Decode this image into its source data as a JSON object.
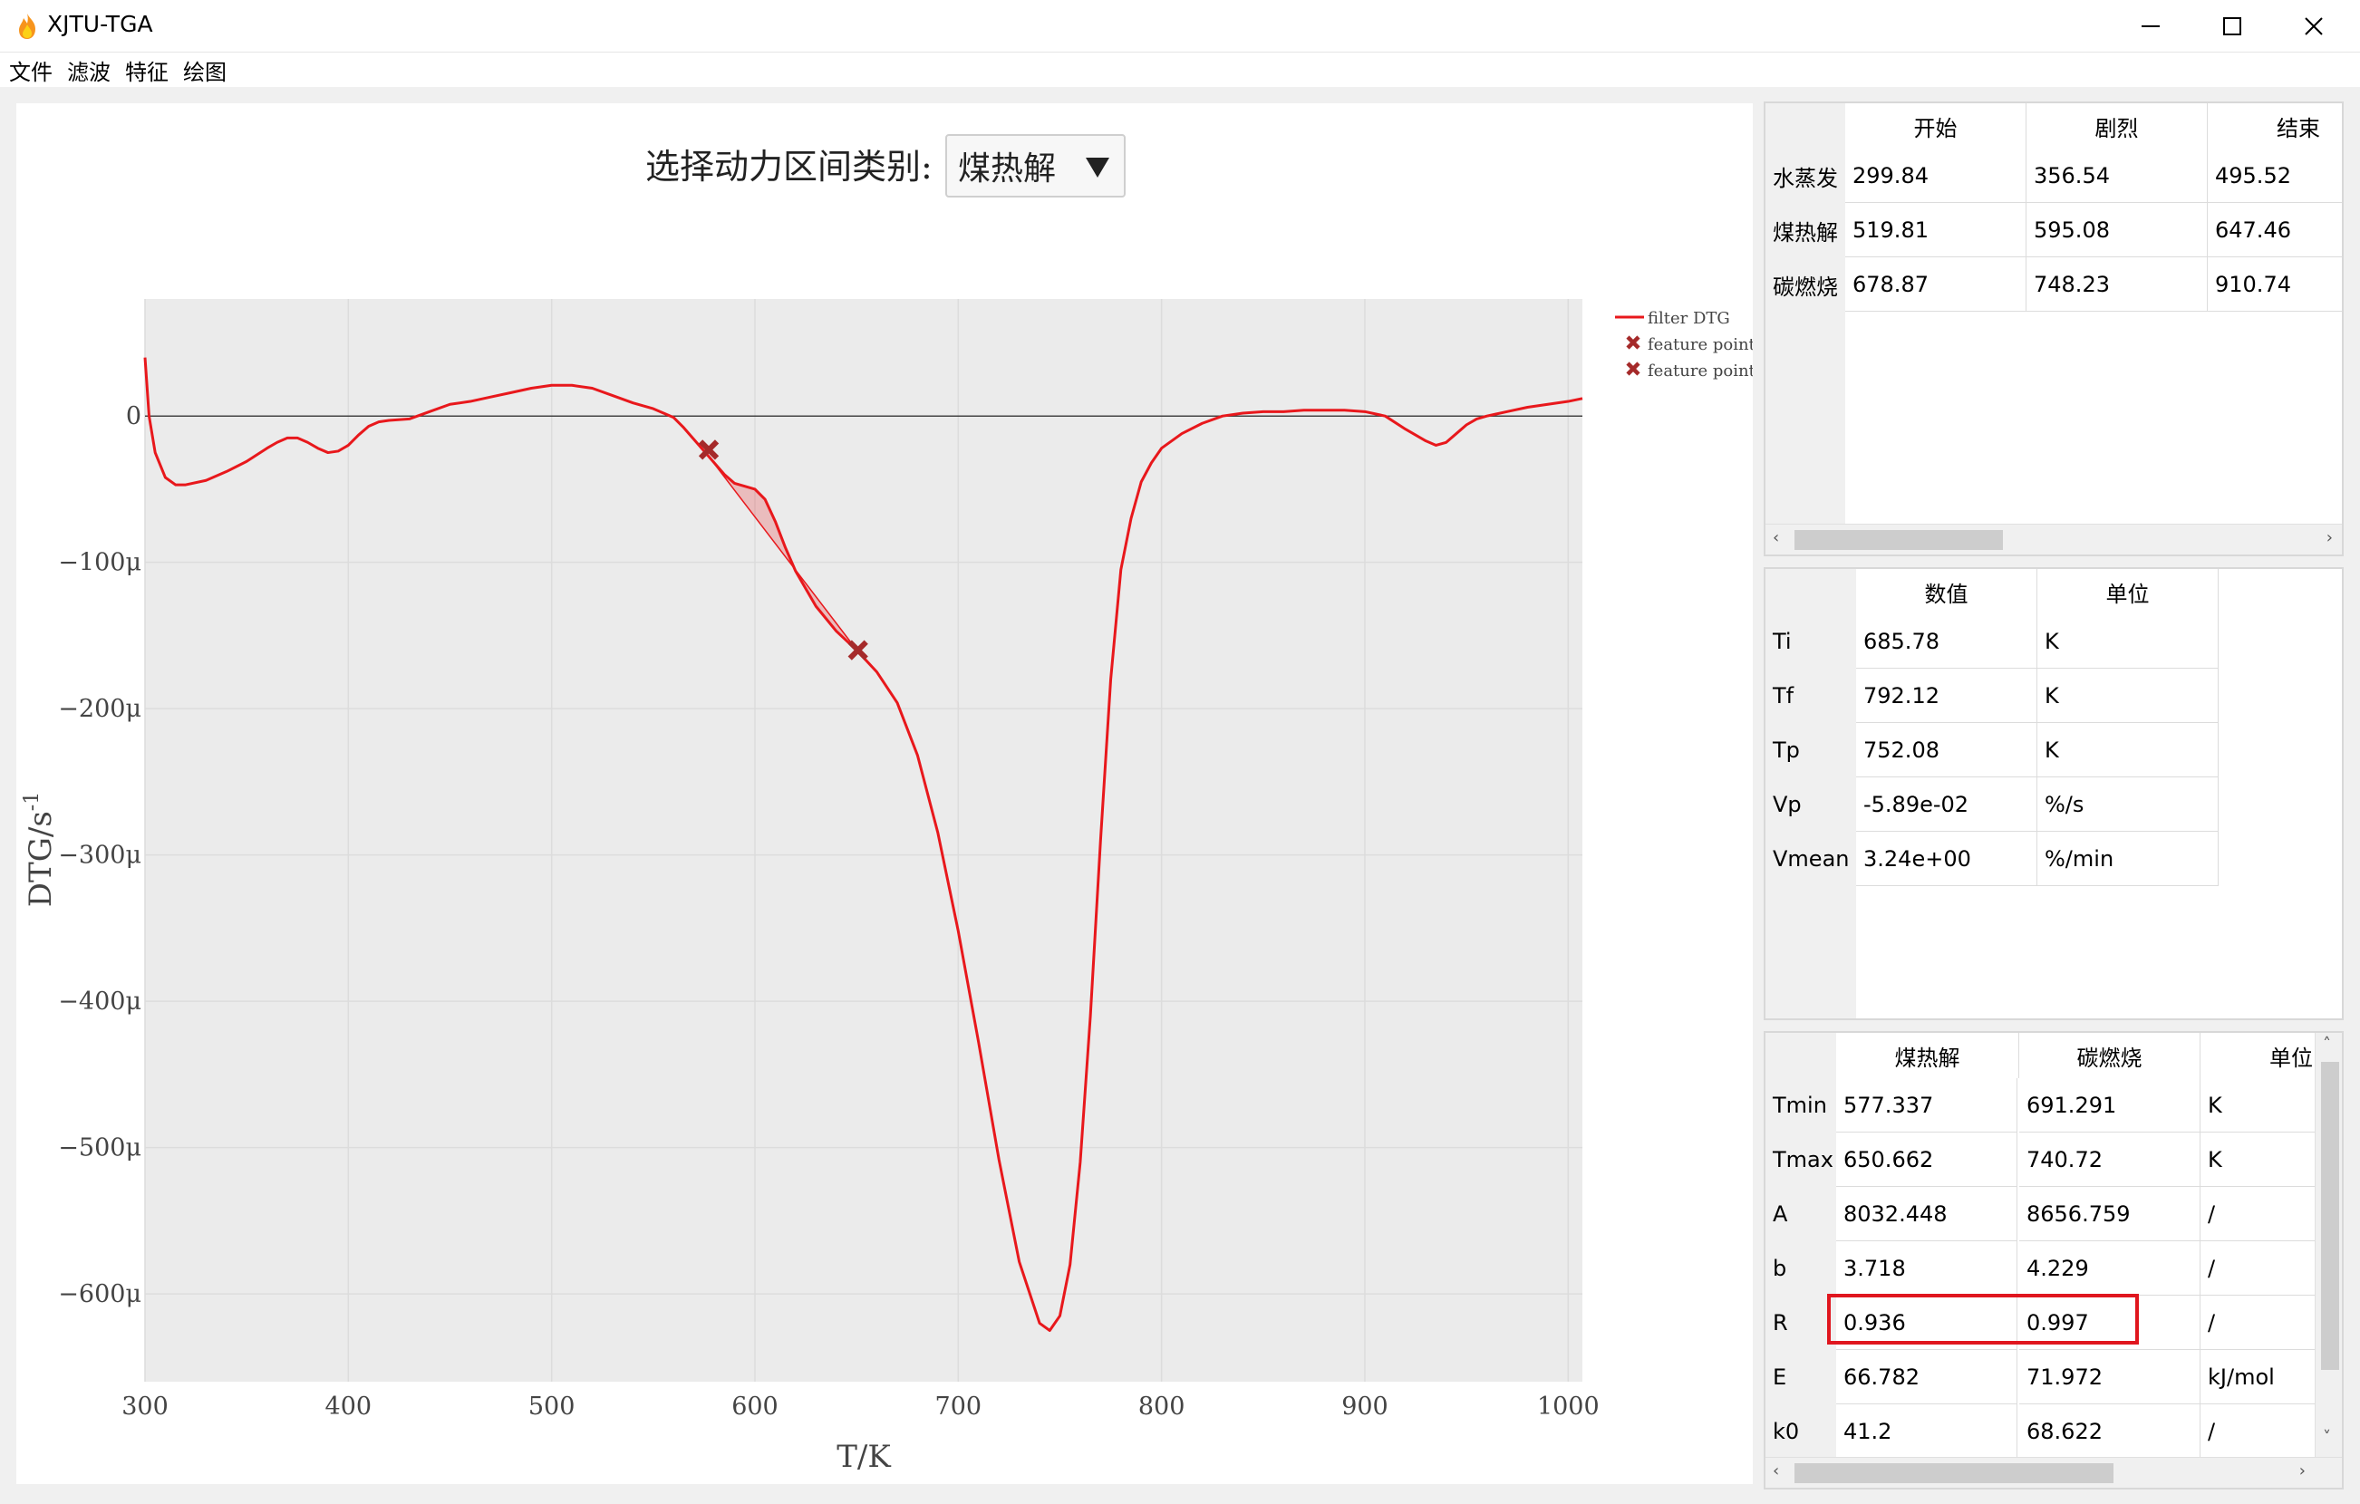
{
  "window": {
    "title": "XJTU-TGA"
  },
  "menu": {
    "items": [
      "文件",
      "滤波",
      "特征",
      "绘图"
    ]
  },
  "selector": {
    "label": "选择动力区间类别:",
    "value": "煤热解"
  },
  "chart_data": {
    "type": "line",
    "xlabel": "T/K",
    "ylabel": "DTG/s",
    "ylabel_sup": "-1",
    "xlim": [
      300,
      1007
    ],
    "ylim": [
      -660,
      80
    ],
    "xticks": [
      "300",
      "400",
      "500",
      "600",
      "700",
      "800",
      "900",
      "1000"
    ],
    "xtick_values": [
      300,
      400,
      500,
      600,
      700,
      800,
      900,
      1000
    ],
    "yticks": [
      "0",
      "−100μ",
      "−200μ",
      "−300μ",
      "−400μ",
      "−500μ",
      "−600μ"
    ],
    "ytick_values": [
      0,
      -100,
      -200,
      -300,
      -400,
      -500,
      -600
    ],
    "grid": true,
    "legend_position": "top-right",
    "series": [
      {
        "name": "filter DTG",
        "color": "#e8181c",
        "x": [
          300,
          302,
          305,
          310,
          315,
          320,
          330,
          340,
          350,
          360,
          365,
          370,
          375,
          380,
          385,
          390,
          395,
          400,
          405,
          410,
          415,
          420,
          430,
          440,
          450,
          460,
          470,
          480,
          490,
          500,
          510,
          520,
          530,
          540,
          550,
          560,
          565,
          570,
          575,
          580,
          585,
          590,
          595,
          600,
          605,
          610,
          615,
          620,
          625,
          630,
          640,
          650,
          660,
          670,
          680,
          690,
          700,
          710,
          720,
          730,
          740,
          745,
          750,
          755,
          760,
          765,
          770,
          775,
          780,
          785,
          790,
          795,
          800,
          810,
          820,
          830,
          840,
          850,
          860,
          870,
          880,
          890,
          900,
          910,
          920,
          930,
          935,
          940,
          945,
          950,
          955,
          960,
          970,
          980,
          990,
          1000,
          1007
        ],
        "y": [
          40,
          0,
          -25,
          -42,
          -47,
          -47,
          -44,
          -38,
          -31,
          -22,
          -18,
          -15,
          -15,
          -18,
          -22,
          -25,
          -24,
          -20,
          -13,
          -7,
          -4,
          -3,
          -2,
          3,
          8,
          10,
          13,
          16,
          19,
          21,
          21,
          19,
          14,
          9,
          5,
          -1,
          -8,
          -16,
          -24,
          -32,
          -40,
          -46,
          -48,
          -50,
          -57,
          -72,
          -90,
          -106,
          -118,
          -130,
          -147,
          -160,
          -175,
          -196,
          -232,
          -285,
          -352,
          -428,
          -508,
          -578,
          -620,
          -625,
          -615,
          -580,
          -510,
          -410,
          -290,
          -180,
          -105,
          -70,
          -45,
          -32,
          -22,
          -12,
          -5,
          0,
          2,
          3,
          3,
          4,
          4,
          4,
          3,
          0,
          -9,
          -17,
          -20,
          -18,
          -12,
          -6,
          -2,
          0,
          3,
          6,
          8,
          10,
          12
        ]
      },
      {
        "name": "feature point",
        "color": "#a52a2a",
        "marker": "x",
        "x": [
          577.3
        ],
        "y": [
          -23
        ]
      },
      {
        "name": "feature point",
        "color": "#a52a2a",
        "marker": "x",
        "x": [
          650.7
        ],
        "y": [
          -160
        ]
      }
    ],
    "fill_between": {
      "x_start": 577.3,
      "x_end": 650.7,
      "color": "#e8181c"
    }
  },
  "table1": {
    "columns": [
      "开始",
      "剧烈",
      "结束"
    ],
    "rows": [
      {
        "label": "水蒸发",
        "cells": [
          "299.84",
          "356.54",
          "495.52"
        ]
      },
      {
        "label": "煤热解",
        "cells": [
          "519.81",
          "595.08",
          "647.46"
        ]
      },
      {
        "label": "碳燃烧",
        "cells": [
          "678.87",
          "748.23",
          "910.74"
        ]
      }
    ]
  },
  "table2": {
    "columns": [
      "数值",
      "单位"
    ],
    "rows": [
      {
        "label": "Ti",
        "cells": [
          "685.78",
          "K"
        ]
      },
      {
        "label": "Tf",
        "cells": [
          "792.12",
          "K"
        ]
      },
      {
        "label": "Tp",
        "cells": [
          "752.08",
          "K"
        ]
      },
      {
        "label": "Vp",
        "cells": [
          "-5.89e-02",
          "%/s"
        ]
      },
      {
        "label": "Vmean",
        "cells": [
          "3.24e+00",
          "%/min"
        ]
      }
    ]
  },
  "table3": {
    "columns": [
      "煤热解",
      "碳燃烧",
      "单位"
    ],
    "rows": [
      {
        "label": "Tmin",
        "cells": [
          "577.337",
          "691.291",
          "K"
        ]
      },
      {
        "label": "Tmax",
        "cells": [
          "650.662",
          "740.72",
          "K"
        ]
      },
      {
        "label": "A",
        "cells": [
          "8032.448",
          "8656.759",
          "/"
        ]
      },
      {
        "label": "b",
        "cells": [
          "3.718",
          "4.229",
          "/"
        ]
      },
      {
        "label": "R",
        "cells": [
          "0.936",
          "0.997",
          "/"
        ]
      },
      {
        "label": "E",
        "cells": [
          "66.782",
          "71.972",
          "kJ/mol"
        ]
      },
      {
        "label": "k0",
        "cells": [
          "41.2",
          "68.622",
          "/"
        ]
      }
    ]
  }
}
